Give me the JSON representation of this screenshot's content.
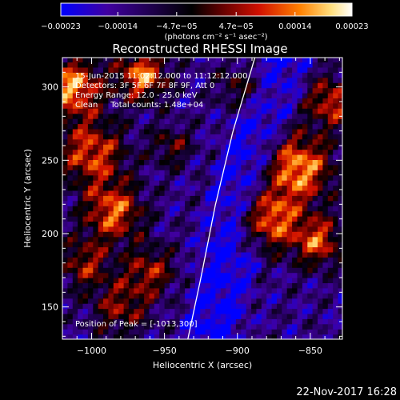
{
  "chart_data": {
    "type": "heatmap",
    "title": "Reconstructed RHESSI Image",
    "xlabel": "Heliocentric X (arcsec)",
    "ylabel": "Heliocentric Y (arcsec)",
    "xlim": [
      -1020,
      -828
    ],
    "ylim": [
      128,
      320
    ],
    "x_ticks": [
      -1000,
      -950,
      -900,
      -850
    ],
    "x_tick_labels": [
      "−1000",
      "−950",
      "−900",
      "−850"
    ],
    "y_ticks": [
      150,
      200,
      250,
      300
    ],
    "y_tick_labels": [
      "150",
      "200",
      "250",
      "300"
    ],
    "colorbar": {
      "min": -0.00023,
      "max": 0.00023,
      "tick_values": [
        -0.00023,
        -0.00014,
        -4.7e-05,
        4.7e-05,
        0.00014,
        0.00023
      ],
      "tick_labels": [
        "−0.00023",
        "−0.00014",
        "−4.7e−05",
        "4.7e−05",
        "0.00014",
        "0.00023"
      ],
      "unit_label": "(photons cm⁻² s⁻¹ asec⁻²)",
      "colors": [
        "#0000ff",
        "#4000a0",
        "#000000",
        "#b00000",
        "#ff6000",
        "#ffe060",
        "#ffffff"
      ]
    },
    "annotations": {
      "time_range": "15-Jun-2015 11:02:12.000 to 11:12:12.000",
      "detectors": "Detectors: 3F 5F 6F 7F 8F 9F, Att 0",
      "energy": "Energy Range: 12.0 - 25.0 keV",
      "method": "Clean     Total counts: 1.48e+04",
      "peak": "Position of Peak = [-1013,300]"
    },
    "limb_curve": [
      [
        -934,
        128
      ],
      [
        -925,
        170
      ],
      [
        -915,
        220
      ],
      [
        -903,
        270
      ],
      [
        -888,
        320
      ]
    ],
    "grid": false,
    "legend": "none"
  },
  "footer": {
    "timestamp": "22-Nov-2017 16:28"
  }
}
